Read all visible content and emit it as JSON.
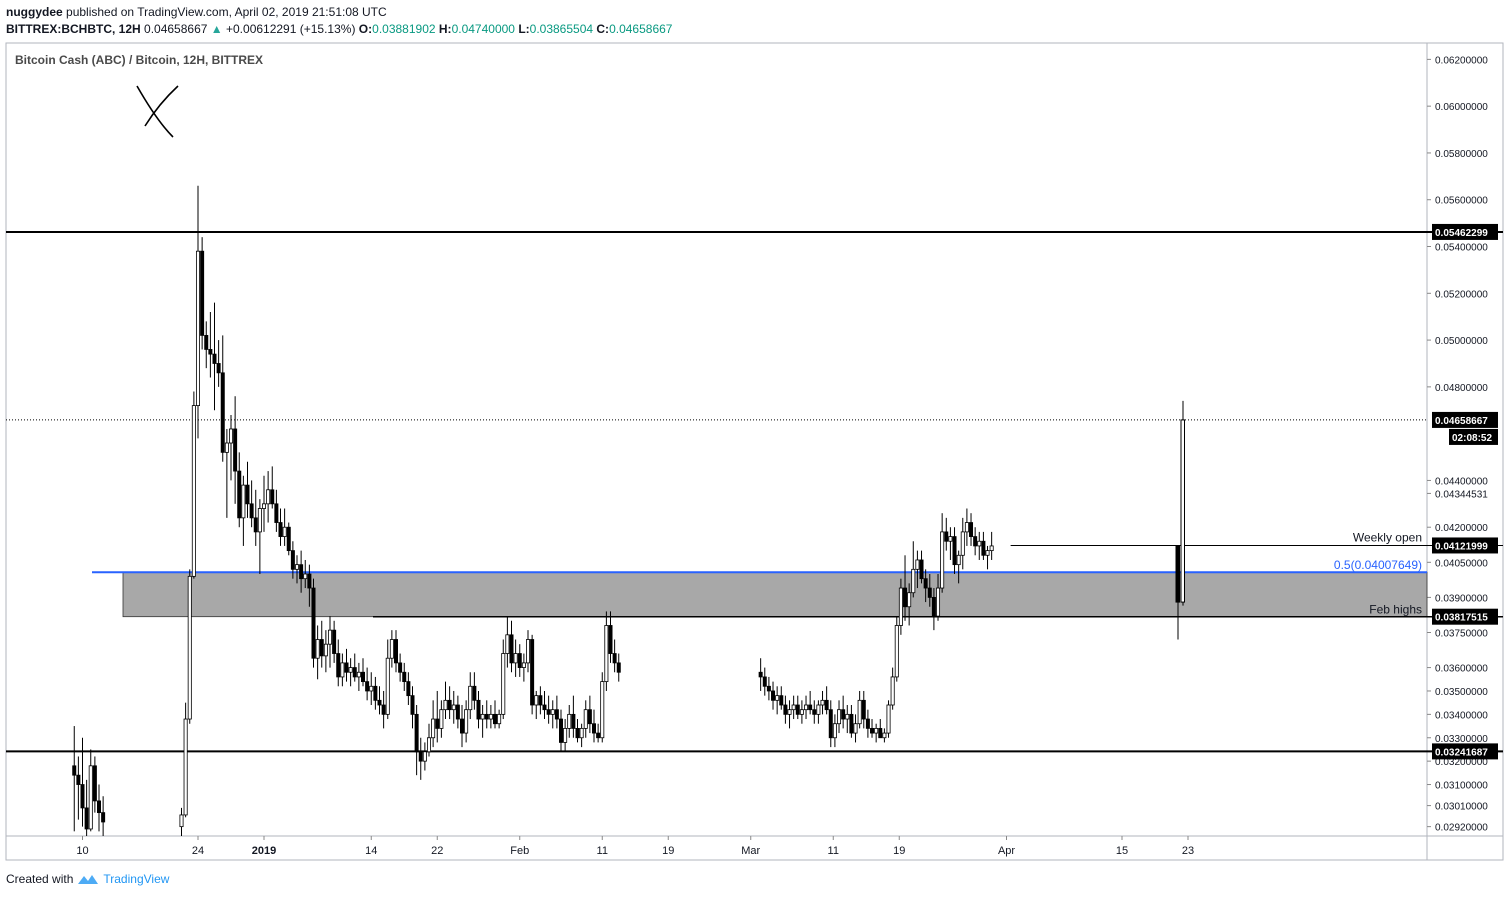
{
  "header": {
    "author": "nuggydee",
    "published": "published on TradingView.com, April 02, 2019 21:51:08 UTC",
    "symbol": "BITTREX:BCHBTC, 12H",
    "last": "0.04658667",
    "change": "+0.00612291 (+15.13%)",
    "o_label": "O:",
    "o": "0.03881902",
    "h_label": "H:",
    "h": "0.04740000",
    "l_label": "L:",
    "l": "0.03865504",
    "c_label": "C:",
    "c": "0.04658667"
  },
  "footer": {
    "created": "Created with",
    "brand": "TradingView"
  },
  "colors": {
    "up": "#26a69a",
    "green": "#089981",
    "blue_line": "#2962ff",
    "zone": "#a8a8a8",
    "candle": "#000000"
  },
  "chart_data": {
    "type": "candlestick",
    "title": "Bitcoin Cash (ABC) / Bitcoin, 12H, BITTREX",
    "ylim": [
      0.0288,
      0.0627
    ],
    "yticks": [
      "0.06200000",
      "0.06000000",
      "0.05800000",
      "0.05600000",
      "0.05400000",
      "0.05200000",
      "0.05000000",
      "0.04800000",
      "0.04400000",
      "0.04344531",
      "0.04200000",
      "0.04050000",
      "0.03900000",
      "0.03750000",
      "0.03600000",
      "0.03500000",
      "0.03400000",
      "0.03300000",
      "0.03200000",
      "0.03100000",
      "0.03010000",
      "0.02920000"
    ],
    "ytick_values": [
      0.062,
      0.06,
      0.058,
      0.056,
      0.054,
      0.052,
      0.05,
      0.048,
      0.044,
      0.04344531,
      0.042,
      0.0405,
      0.039,
      0.0375,
      0.036,
      0.035,
      0.034,
      0.033,
      0.032,
      0.031,
      0.0301,
      0.0292
    ],
    "xticks": [
      {
        "label": "10",
        "day": -22
      },
      {
        "label": "24",
        "day": -8
      },
      {
        "label": "2019",
        "day": 0
      },
      {
        "label": "14",
        "day": 13
      },
      {
        "label": "22",
        "day": 21
      },
      {
        "label": "Feb",
        "day": 31
      },
      {
        "label": "11",
        "day": 41
      },
      {
        "label": "19",
        "day": 49
      },
      {
        "label": "Mar",
        "day": 59
      },
      {
        "label": "11",
        "day": 69
      },
      {
        "label": "19",
        "day": 77
      },
      {
        "label": "Apr",
        "day": 90
      },
      {
        "label": "15",
        "day": 104
      },
      {
        "label": "23",
        "day": 112
      }
    ],
    "horizontal_levels": [
      {
        "label": "0.05462299",
        "value": 0.05462299
      },
      {
        "label": "0.03241687",
        "value": 0.03241687
      }
    ],
    "last_price": {
      "label": "0.04658667",
      "value": 0.04658667,
      "countdown": "02:08:52"
    },
    "weekly_open": {
      "text": "Weekly open",
      "label": "0.04121999",
      "value": 0.04121999
    },
    "feb_highs": {
      "text": "Feb highs",
      "label": "0.03817515",
      "value": 0.03817515
    },
    "fib": {
      "text": "0.5(0.04007649)",
      "value": 0.04007649
    },
    "zone": {
      "top": 0.04007649,
      "bottom": 0.03817515
    },
    "annotation": "X",
    "candles": [
      [
        -23.0,
        0.0318,
        0.0335,
        0.029,
        0.0314
      ],
      [
        -22.5,
        0.0314,
        0.0322,
        0.0295,
        0.031
      ],
      [
        -22.0,
        0.031,
        0.033,
        0.0292,
        0.03
      ],
      [
        -21.5,
        0.03,
        0.0312,
        0.0288,
        0.0291
      ],
      [
        -21.0,
        0.0291,
        0.0325,
        0.029,
        0.0318
      ],
      [
        -20.5,
        0.0318,
        0.0322,
        0.0298,
        0.0303
      ],
      [
        -20.0,
        0.0303,
        0.031,
        0.029,
        0.0298
      ],
      [
        -19.5,
        0.0298,
        0.0305,
        0.0288,
        0.0294
      ],
      [
        -10.0,
        0.0292,
        0.03,
        0.0288,
        0.0297
      ],
      [
        -9.5,
        0.0297,
        0.0345,
        0.0296,
        0.0338
      ],
      [
        -9.0,
        0.0338,
        0.0402,
        0.0336,
        0.0399
      ],
      [
        -8.5,
        0.0399,
        0.0478,
        0.0398,
        0.0472
      ],
      [
        -8.0,
        0.0472,
        0.0566,
        0.0458,
        0.0538
      ],
      [
        -7.5,
        0.0538,
        0.0544,
        0.0496,
        0.0502
      ],
      [
        -7.0,
        0.0502,
        0.0508,
        0.0488,
        0.0496
      ],
      [
        -6.5,
        0.0496,
        0.0512,
        0.0484,
        0.0494
      ],
      [
        -6.0,
        0.0494,
        0.0516,
        0.047,
        0.049
      ],
      [
        -5.5,
        0.049,
        0.05,
        0.048,
        0.0486
      ],
      [
        -5.0,
        0.0486,
        0.0502,
        0.0448,
        0.0452
      ],
      [
        -4.5,
        0.0452,
        0.0462,
        0.0424,
        0.0456
      ],
      [
        -4.0,
        0.0456,
        0.0468,
        0.044,
        0.0462
      ],
      [
        -3.5,
        0.0462,
        0.0476,
        0.043,
        0.0444
      ],
      [
        -3.0,
        0.0444,
        0.0452,
        0.042,
        0.0424
      ],
      [
        -2.5,
        0.0424,
        0.0442,
        0.0412,
        0.0438
      ],
      [
        -2.0,
        0.0438,
        0.0448,
        0.0424,
        0.043
      ],
      [
        -1.5,
        0.043,
        0.044,
        0.042,
        0.0424
      ],
      [
        -1.0,
        0.0424,
        0.0436,
        0.0412,
        0.0418
      ],
      [
        -0.5,
        0.0418,
        0.0432,
        0.04,
        0.0428
      ],
      [
        0.0,
        0.0428,
        0.0442,
        0.0418,
        0.043
      ],
      [
        0.5,
        0.043,
        0.0444,
        0.0422,
        0.0436
      ],
      [
        1.0,
        0.0436,
        0.0446,
        0.0428,
        0.043
      ],
      [
        1.5,
        0.043,
        0.0436,
        0.0418,
        0.0422
      ],
      [
        2.0,
        0.0422,
        0.0428,
        0.0412,
        0.0416
      ],
      [
        2.5,
        0.0416,
        0.0428,
        0.0412,
        0.042
      ],
      [
        3.0,
        0.042,
        0.0422,
        0.0408,
        0.041
      ],
      [
        3.5,
        0.041,
        0.0414,
        0.0398,
        0.0402
      ],
      [
        4.0,
        0.0402,
        0.0408,
        0.0396,
        0.0404
      ],
      [
        4.5,
        0.0404,
        0.041,
        0.0392,
        0.0398
      ],
      [
        5.0,
        0.0398,
        0.0406,
        0.0394,
        0.04
      ],
      [
        5.5,
        0.04,
        0.0404,
        0.0386,
        0.0394
      ],
      [
        6.0,
        0.0394,
        0.0398,
        0.036,
        0.0364
      ],
      [
        6.5,
        0.0364,
        0.0378,
        0.0355,
        0.0372
      ],
      [
        7.0,
        0.0372,
        0.038,
        0.036,
        0.0365
      ],
      [
        7.5,
        0.0365,
        0.0376,
        0.0358,
        0.037
      ],
      [
        8.0,
        0.037,
        0.0382,
        0.036,
        0.0376
      ],
      [
        8.5,
        0.0376,
        0.038,
        0.0362,
        0.0366
      ],
      [
        9.0,
        0.0366,
        0.0372,
        0.0352,
        0.0356
      ],
      [
        9.5,
        0.0356,
        0.0366,
        0.0352,
        0.0362
      ],
      [
        10.0,
        0.0362,
        0.0368,
        0.0354,
        0.0358
      ],
      [
        10.5,
        0.0358,
        0.0364,
        0.0352,
        0.036
      ],
      [
        11.0,
        0.036,
        0.0366,
        0.0354,
        0.0356
      ],
      [
        11.5,
        0.0356,
        0.0362,
        0.035,
        0.0358
      ],
      [
        12.0,
        0.0358,
        0.0364,
        0.0352,
        0.0354
      ],
      [
        12.5,
        0.0354,
        0.036,
        0.0346,
        0.035
      ],
      [
        13.0,
        0.035,
        0.0358,
        0.0344,
        0.0352
      ],
      [
        13.5,
        0.0352,
        0.0356,
        0.0342,
        0.0346
      ],
      [
        14.0,
        0.0346,
        0.0352,
        0.034,
        0.0344
      ],
      [
        14.5,
        0.0344,
        0.035,
        0.0334,
        0.034
      ],
      [
        15.0,
        0.034,
        0.0372,
        0.0338,
        0.0364
      ],
      [
        15.5,
        0.0364,
        0.0376,
        0.036,
        0.0372
      ],
      [
        16.0,
        0.0372,
        0.0376,
        0.0358,
        0.0362
      ],
      [
        16.5,
        0.0362,
        0.0366,
        0.0354,
        0.0358
      ],
      [
        17.0,
        0.0358,
        0.0362,
        0.035,
        0.0354
      ],
      [
        17.5,
        0.0354,
        0.0358,
        0.0344,
        0.0348
      ],
      [
        18.0,
        0.0348,
        0.0352,
        0.0334,
        0.034
      ],
      [
        18.5,
        0.034,
        0.0344,
        0.0314,
        0.0324
      ],
      [
        19.0,
        0.0324,
        0.033,
        0.0312,
        0.032
      ],
      [
        19.5,
        0.032,
        0.0328,
        0.0316,
        0.0324
      ],
      [
        20.0,
        0.0324,
        0.0336,
        0.0322,
        0.033
      ],
      [
        20.5,
        0.033,
        0.0346,
        0.0326,
        0.0338
      ],
      [
        21.0,
        0.0338,
        0.035,
        0.0328,
        0.0334
      ],
      [
        21.5,
        0.0334,
        0.0346,
        0.033,
        0.0342
      ],
      [
        22.0,
        0.0342,
        0.0354,
        0.0338,
        0.0346
      ],
      [
        22.5,
        0.0346,
        0.0352,
        0.0338,
        0.0342
      ],
      [
        23.0,
        0.0342,
        0.035,
        0.0336,
        0.0344
      ],
      [
        23.5,
        0.0344,
        0.0348,
        0.0334,
        0.0338
      ],
      [
        24.0,
        0.0338,
        0.0344,
        0.0326,
        0.0332
      ],
      [
        24.5,
        0.0332,
        0.0346,
        0.0328,
        0.0342
      ],
      [
        25.0,
        0.0342,
        0.0358,
        0.0338,
        0.0352
      ],
      [
        25.5,
        0.0352,
        0.0358,
        0.0342,
        0.0346
      ],
      [
        26.0,
        0.0346,
        0.035,
        0.0334,
        0.0338
      ],
      [
        26.5,
        0.0338,
        0.0344,
        0.033,
        0.034
      ],
      [
        27.0,
        0.034,
        0.0346,
        0.0334,
        0.0338
      ],
      [
        27.5,
        0.0338,
        0.0344,
        0.0334,
        0.034
      ],
      [
        28.0,
        0.034,
        0.0346,
        0.0334,
        0.0336
      ],
      [
        28.5,
        0.0336,
        0.0342,
        0.0334,
        0.034
      ],
      [
        29.0,
        0.034,
        0.0372,
        0.0338,
        0.0366
      ],
      [
        29.5,
        0.0366,
        0.0382,
        0.036,
        0.0374
      ],
      [
        30.0,
        0.0374,
        0.038,
        0.0358,
        0.0362
      ],
      [
        30.5,
        0.0362,
        0.0372,
        0.0356,
        0.0366
      ],
      [
        31.0,
        0.0366,
        0.037,
        0.0356,
        0.036
      ],
      [
        31.5,
        0.036,
        0.0366,
        0.0354,
        0.0362
      ],
      [
        32.0,
        0.0362,
        0.0376,
        0.0358,
        0.0372
      ],
      [
        32.5,
        0.0372,
        0.0374,
        0.034,
        0.0344
      ],
      [
        33.0,
        0.0344,
        0.035,
        0.0338,
        0.0348
      ],
      [
        33.5,
        0.0348,
        0.0352,
        0.034,
        0.0344
      ],
      [
        34.0,
        0.0344,
        0.035,
        0.0338,
        0.0342
      ],
      [
        34.5,
        0.0342,
        0.0348,
        0.0336,
        0.034
      ],
      [
        35.0,
        0.034,
        0.0346,
        0.0334,
        0.0342
      ],
      [
        35.5,
        0.0342,
        0.0348,
        0.0334,
        0.0338
      ],
      [
        36.0,
        0.0338,
        0.0342,
        0.0324,
        0.0328
      ],
      [
        36.5,
        0.0328,
        0.0338,
        0.0324,
        0.0334
      ],
      [
        37.0,
        0.0334,
        0.0344,
        0.033,
        0.034
      ],
      [
        37.5,
        0.034,
        0.0348,
        0.033,
        0.0334
      ],
      [
        38.0,
        0.0334,
        0.0338,
        0.0328,
        0.033
      ],
      [
        38.5,
        0.033,
        0.0336,
        0.0326,
        0.0334
      ],
      [
        39.0,
        0.0334,
        0.0346,
        0.033,
        0.0342
      ],
      [
        39.5,
        0.0342,
        0.0348,
        0.0332,
        0.0336
      ],
      [
        40.0,
        0.0336,
        0.0342,
        0.0328,
        0.0332
      ],
      [
        40.5,
        0.0332,
        0.0336,
        0.0328,
        0.033
      ],
      [
        41.0,
        0.033,
        0.0358,
        0.0328,
        0.0354
      ],
      [
        41.5,
        0.0354,
        0.0384,
        0.035,
        0.0378
      ],
      [
        42.0,
        0.0378,
        0.0384,
        0.0362,
        0.0366
      ],
      [
        42.5,
        0.0366,
        0.0372,
        0.0358,
        0.0362
      ],
      [
        43.0,
        0.0362,
        0.0366,
        0.0354,
        0.0358
      ]
    ]
  }
}
